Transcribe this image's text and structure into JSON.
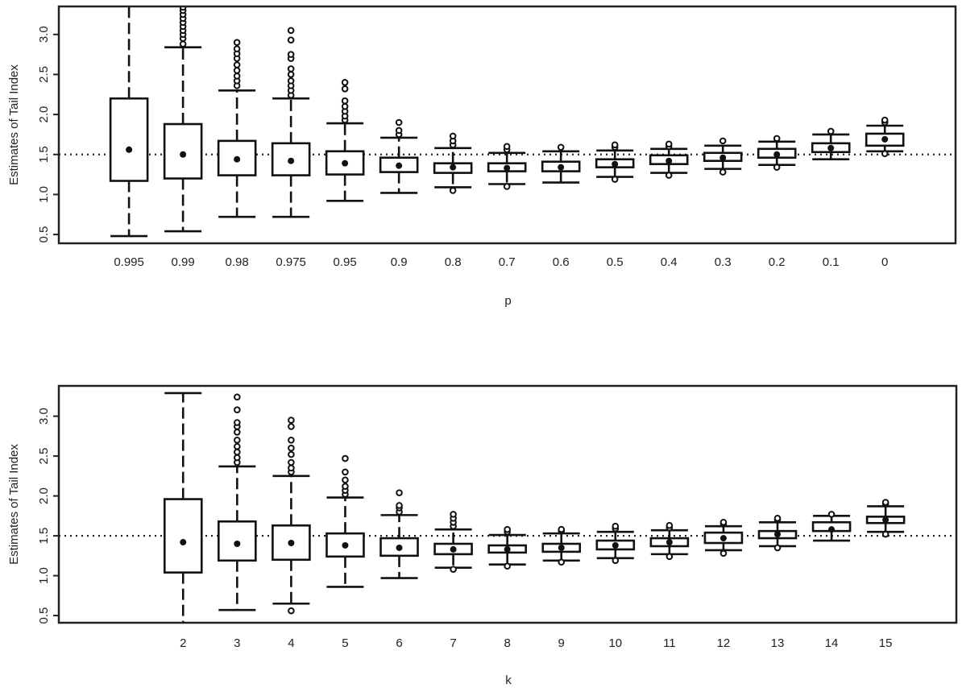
{
  "chart_data": [
    {
      "type": "box",
      "title": "",
      "xlabel": "p",
      "ylabel": "Estimates of Tail Index",
      "ylim": [
        0.39,
        3.35
      ],
      "yticks": [
        "0.5",
        "1.0",
        "1.5",
        "2.0",
        "2.5",
        "3.0"
      ],
      "reference_line": 1.5,
      "categories": [
        "0.995",
        "0.99",
        "0.98",
        "0.975",
        "0.95",
        "0.9",
        "0.8",
        "0.7",
        "0.6",
        "0.5",
        "0.4",
        "0.3",
        "0.2",
        "0.1",
        "0"
      ],
      "boxes": [
        {
          "low": 0.48,
          "q1": 1.17,
          "center": 1.56,
          "q3": 2.2,
          "high": 3.4,
          "outliers": []
        },
        {
          "low": 0.54,
          "q1": 1.2,
          "center": 1.5,
          "q3": 1.88,
          "high": 2.84,
          "outliers": [
            2.88,
            2.95,
            3.0,
            3.05,
            3.1,
            3.15,
            3.2,
            3.25,
            3.3,
            3.34
          ]
        },
        {
          "low": 0.72,
          "q1": 1.24,
          "center": 1.44,
          "q3": 1.67,
          "high": 2.3,
          "outliers": [
            2.36,
            2.42,
            2.48,
            2.55,
            2.62,
            2.7,
            2.76,
            2.82,
            2.9
          ]
        },
        {
          "low": 0.72,
          "q1": 1.24,
          "center": 1.42,
          "q3": 1.64,
          "high": 2.2,
          "outliers": [
            2.24,
            2.3,
            2.36,
            2.42,
            2.5,
            2.57,
            2.7,
            2.75,
            2.93,
            3.05
          ]
        },
        {
          "low": 0.92,
          "q1": 1.25,
          "center": 1.39,
          "q3": 1.54,
          "high": 1.89,
          "outliers": [
            1.93,
            1.98,
            2.04,
            2.1,
            2.17,
            2.32,
            2.4
          ]
        },
        {
          "low": 1.02,
          "q1": 1.28,
          "center": 1.36,
          "q3": 1.46,
          "high": 1.71,
          "outliers": [
            1.75,
            1.8,
            1.9
          ]
        },
        {
          "low": 1.09,
          "q1": 1.27,
          "center": 1.34,
          "q3": 1.39,
          "high": 1.58,
          "outliers": [
            1.05,
            1.62,
            1.67,
            1.73
          ]
        },
        {
          "low": 1.13,
          "q1": 1.29,
          "center": 1.33,
          "q3": 1.39,
          "high": 1.52,
          "outliers": [
            1.1,
            1.56,
            1.6
          ]
        },
        {
          "low": 1.15,
          "q1": 1.29,
          "center": 1.34,
          "q3": 1.41,
          "high": 1.54,
          "outliers": [
            1.59
          ]
        },
        {
          "low": 1.22,
          "q1": 1.34,
          "center": 1.38,
          "q3": 1.44,
          "high": 1.55,
          "outliers": [
            1.19,
            1.59,
            1.62
          ]
        },
        {
          "low": 1.27,
          "q1": 1.38,
          "center": 1.42,
          "q3": 1.49,
          "high": 1.57,
          "outliers": [
            1.24,
            1.6,
            1.63
          ]
        },
        {
          "low": 1.32,
          "q1": 1.42,
          "center": 1.46,
          "q3": 1.52,
          "high": 1.61,
          "outliers": [
            1.28,
            1.67
          ]
        },
        {
          "low": 1.37,
          "q1": 1.46,
          "center": 1.5,
          "q3": 1.57,
          "high": 1.66,
          "outliers": [
            1.34,
            1.7
          ]
        },
        {
          "low": 1.44,
          "q1": 1.53,
          "center": 1.58,
          "q3": 1.64,
          "high": 1.75,
          "outliers": [
            1.79
          ]
        },
        {
          "low": 1.54,
          "q1": 1.61,
          "center": 1.69,
          "q3": 1.76,
          "high": 1.86,
          "outliers": [
            1.51,
            1.9,
            1.93
          ]
        }
      ]
    },
    {
      "type": "box",
      "title": "",
      "xlabel": "k",
      "ylabel": "Estimates of Tail Index",
      "ylim": [
        0.41,
        3.38
      ],
      "yticks": [
        "0.5",
        "1.0",
        "1.5",
        "2.0",
        "2.5",
        "3.0"
      ],
      "reference_line": 1.5,
      "categories": [
        "",
        "2",
        "3",
        "4",
        "5",
        "6",
        "7",
        "8",
        "9",
        "10",
        "11",
        "12",
        "13",
        "14",
        "15"
      ],
      "boxes": [
        null,
        {
          "low": 0.3,
          "q1": 1.04,
          "center": 1.42,
          "q3": 1.96,
          "high": 3.29,
          "outliers": []
        },
        {
          "low": 0.57,
          "q1": 1.19,
          "center": 1.4,
          "q3": 1.68,
          "high": 2.37,
          "outliers": [
            2.42,
            2.48,
            2.55,
            2.62,
            2.7,
            2.8,
            2.87,
            2.92,
            3.08,
            3.24
          ]
        },
        {
          "low": 0.65,
          "q1": 1.2,
          "center": 1.41,
          "q3": 1.63,
          "high": 2.25,
          "outliers": [
            0.56,
            2.3,
            2.35,
            2.42,
            2.52,
            2.6,
            2.7,
            2.87,
            2.95
          ]
        },
        {
          "low": 0.86,
          "q1": 1.24,
          "center": 1.38,
          "q3": 1.53,
          "high": 1.98,
          "outliers": [
            2.02,
            2.07,
            2.12,
            2.2,
            2.3,
            2.47
          ]
        },
        {
          "low": 0.97,
          "q1": 1.25,
          "center": 1.35,
          "q3": 1.47,
          "high": 1.76,
          "outliers": [
            1.8,
            1.85,
            1.88,
            2.04
          ]
        },
        {
          "low": 1.1,
          "q1": 1.27,
          "center": 1.33,
          "q3": 1.4,
          "high": 1.58,
          "outliers": [
            1.08,
            1.62,
            1.67,
            1.72,
            1.77
          ]
        },
        {
          "low": 1.14,
          "q1": 1.29,
          "center": 1.33,
          "q3": 1.38,
          "high": 1.51,
          "outliers": [
            1.12,
            1.55,
            1.58
          ]
        },
        {
          "low": 1.19,
          "q1": 1.3,
          "center": 1.35,
          "q3": 1.4,
          "high": 1.53,
          "outliers": [
            1.17,
            1.56,
            1.58
          ]
        },
        {
          "low": 1.22,
          "q1": 1.33,
          "center": 1.38,
          "q3": 1.44,
          "high": 1.55,
          "outliers": [
            1.19,
            1.59,
            1.62
          ]
        },
        {
          "low": 1.27,
          "q1": 1.37,
          "center": 1.42,
          "q3": 1.47,
          "high": 1.57,
          "outliers": [
            1.24,
            1.6,
            1.63
          ]
        },
        {
          "low": 1.32,
          "q1": 1.41,
          "center": 1.47,
          "q3": 1.54,
          "high": 1.62,
          "outliers": [
            1.28,
            1.65,
            1.67
          ]
        },
        {
          "low": 1.37,
          "q1": 1.47,
          "center": 1.52,
          "q3": 1.56,
          "high": 1.67,
          "outliers": [
            1.35,
            1.7,
            1.72
          ]
        },
        {
          "low": 1.44,
          "q1": 1.56,
          "center": 1.58,
          "q3": 1.67,
          "high": 1.75,
          "outliers": [
            1.77
          ]
        },
        {
          "low": 1.55,
          "q1": 1.66,
          "center": 1.7,
          "q3": 1.74,
          "high": 1.87,
          "outliers": [
            1.52,
            1.9,
            1.92
          ]
        }
      ]
    }
  ]
}
